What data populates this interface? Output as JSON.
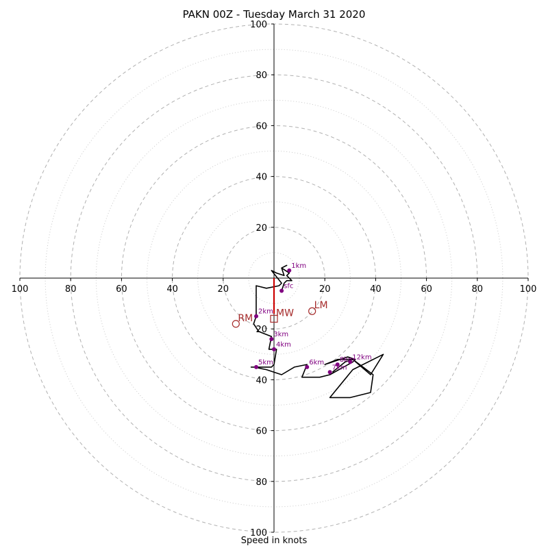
{
  "chart_data": {
    "type": "scatter",
    "title": "PAKN 00Z - Tuesday March 31 2020",
    "xlabel": "Speed in knots",
    "ylabel": "",
    "xlim": [
      -100,
      100
    ],
    "ylim": [
      -100,
      100
    ],
    "rings_major": [
      20,
      40,
      60,
      80,
      100
    ],
    "rings_minor": [
      10,
      30,
      50,
      70,
      90
    ],
    "x_ticks": [
      {
        "v": -100,
        "label": "100"
      },
      {
        "v": -80,
        "label": "80"
      },
      {
        "v": -60,
        "label": "60"
      },
      {
        "v": -40,
        "label": "40"
      },
      {
        "v": -20,
        "label": "20"
      },
      {
        "v": 20,
        "label": "20"
      },
      {
        "v": 40,
        "label": "40"
      },
      {
        "v": 60,
        "label": "60"
      },
      {
        "v": 80,
        "label": "80"
      },
      {
        "v": 100,
        "label": "100"
      }
    ],
    "y_ticks": [
      {
        "v": 100,
        "label": "100"
      },
      {
        "v": 80,
        "label": "80"
      },
      {
        "v": 60,
        "label": "60"
      },
      {
        "v": 40,
        "label": "40"
      },
      {
        "v": 20,
        "label": "20"
      },
      {
        "v": -20,
        "label": "20"
      },
      {
        "v": -40,
        "label": "40"
      },
      {
        "v": -60,
        "label": "60"
      },
      {
        "v": -80,
        "label": "80"
      },
      {
        "v": -100,
        "label": "100"
      }
    ],
    "hodograph": [
      [
        3,
        -5
      ],
      [
        4,
        -2
      ],
      [
        5,
        -1
      ],
      [
        7,
        -1
      ],
      [
        5,
        1
      ],
      [
        6,
        2
      ],
      [
        3,
        4
      ],
      [
        5,
        5
      ],
      [
        3,
        4
      ],
      [
        4,
        1
      ],
      [
        1,
        2
      ],
      [
        -1,
        3
      ],
      [
        3,
        -2
      ],
      [
        2,
        -3
      ],
      [
        -3,
        -4
      ],
      [
        -7,
        -3
      ],
      [
        -7,
        -7
      ],
      [
        -7,
        -10
      ],
      [
        -7,
        -15
      ],
      [
        -8,
        -18
      ],
      [
        -6,
        -21
      ],
      [
        -1,
        -23
      ],
      [
        -2,
        -28
      ],
      [
        1,
        -28
      ],
      [
        0,
        -34
      ],
      [
        -1,
        -35
      ],
      [
        -9,
        -35
      ],
      [
        -8,
        -35
      ],
      [
        -3,
        -36
      ],
      [
        3,
        -38
      ],
      [
        8,
        -35
      ],
      [
        13,
        -34
      ],
      [
        11,
        -39
      ],
      [
        18,
        -39
      ],
      [
        22,
        -38
      ],
      [
        31,
        -33
      ],
      [
        32,
        -32
      ],
      [
        29,
        -31
      ],
      [
        20,
        -34
      ],
      [
        25,
        -32
      ],
      [
        31,
        -32
      ],
      [
        38,
        -38
      ],
      [
        43,
        -30
      ],
      [
        31,
        -36
      ],
      [
        22,
        -47
      ],
      [
        30,
        -47
      ],
      [
        38,
        -45
      ],
      [
        39,
        -38
      ],
      [
        31,
        -32
      ],
      [
        28,
        -33
      ],
      [
        23,
        -37
      ]
    ],
    "height_markers": [
      {
        "label": "sfc",
        "x": 3,
        "y": -5
      },
      {
        "label": "1km",
        "x": 6,
        "y": 3
      },
      {
        "label": "2km",
        "x": -7,
        "y": -15
      },
      {
        "label": "3km",
        "x": -1,
        "y": -24
      },
      {
        "label": "4km",
        "x": 0,
        "y": -28
      },
      {
        "label": "5km",
        "x": -7,
        "y": -35
      },
      {
        "label": "6km",
        "x": 13,
        "y": -35
      },
      {
        "label": "7km",
        "x": 22,
        "y": -37
      },
      {
        "label": "8km",
        "x": 25,
        "y": -34
      },
      {
        "label": "12km",
        "x": 30,
        "y": -33
      }
    ],
    "storm_motion": [
      {
        "label": "RM",
        "x": -15,
        "y": -18,
        "marker": "circle"
      },
      {
        "label": "LM",
        "x": 15,
        "y": -13,
        "marker": "circle"
      },
      {
        "label": "MW",
        "x": 0,
        "y": -16,
        "marker": "square"
      }
    ],
    "mean_wind_vector": {
      "from": [
        0,
        0
      ],
      "to": [
        0,
        -14
      ]
    },
    "colors": {
      "hodograph": "#000000",
      "height_marker": "#800080",
      "storm_motion": "#a52a2a",
      "vector": "#cc0000",
      "ring": "#b0b0b0"
    }
  }
}
